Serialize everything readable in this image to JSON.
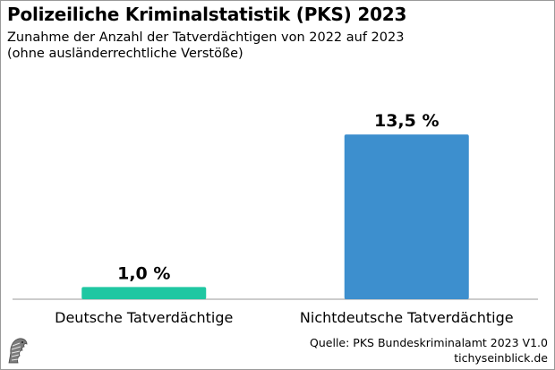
{
  "header": {
    "title": "Polizeiliche Kriminalstatistik (PKS) 2023",
    "subtitle_line1": "Zunahme der Anzahl der Tatverdächtigen von 2022 auf 2023",
    "subtitle_line2": "(ohne ausländerrechtliche Verstöße)"
  },
  "footer": {
    "source": "Quelle: PKS Bundeskriminalamt 2023 V1.0",
    "site": "tichyseinblick.de",
    "logo_icon": "eagle-head-logo-icon"
  },
  "chart_data": {
    "type": "bar",
    "title": "Polizeiliche Kriminalstatistik (PKS) 2023",
    "subtitle": "Zunahme der Anzahl der Tatverdächtigen von 2022 auf 2023 (ohne ausländerrechtliche Verstöße)",
    "categories": [
      "Deutsche Tatverdächtige",
      "Nichtdeutsche Tatverdächtige"
    ],
    "values": [
      1.0,
      13.5
    ],
    "value_labels": [
      "1,0 %",
      "13,5 %"
    ],
    "colors": [
      "#1fc7a2",
      "#3d8fce"
    ],
    "xlabel": "",
    "ylabel": "",
    "ylim": [
      0,
      15.2
    ],
    "grid": false,
    "legend": "none"
  }
}
